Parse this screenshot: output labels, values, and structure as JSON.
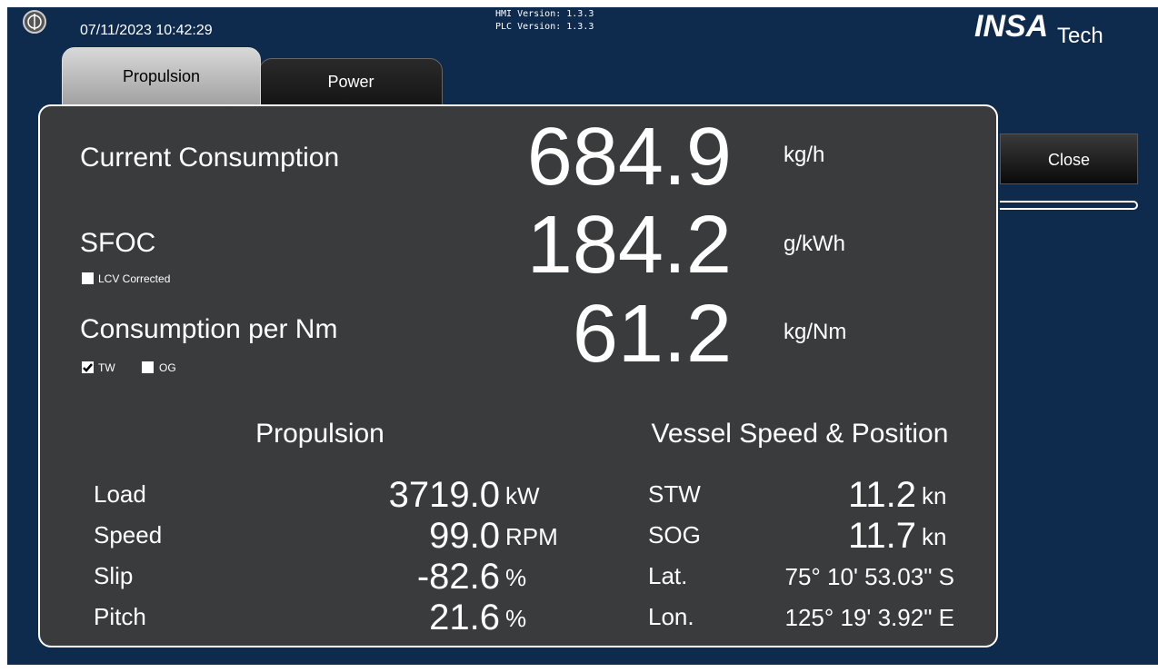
{
  "header": {
    "datetime": "07/11/2023 10:42:29",
    "hmi_version": "HMI Version: 1.3.3",
    "plc_version": "PLC Version: 1.3.3",
    "logo": "INSA",
    "logo_suffix": "Tech"
  },
  "tabs": [
    {
      "label": "Propulsion",
      "active": true
    },
    {
      "label": "Power",
      "active": false
    }
  ],
  "close_button": "Close",
  "metrics": [
    {
      "label": "Current Consumption",
      "value": "684.9",
      "unit": "kg/h"
    },
    {
      "label": "SFOC",
      "value": "184.2",
      "unit": "g/kWh"
    },
    {
      "label": "Consumption per Nm",
      "value": "61.2",
      "unit": "kg/Nm"
    }
  ],
  "options": [
    {
      "label": "LCV Corrected",
      "checked": false
    },
    {
      "label": "TW",
      "checked": true
    },
    {
      "label": "OG",
      "checked": false
    }
  ],
  "propulsion": {
    "title": "Propulsion",
    "rows": [
      {
        "label": "Load",
        "value": "3719.0",
        "unit": "kW"
      },
      {
        "label": "Speed",
        "value": "99.0",
        "unit": "RPM"
      },
      {
        "label": "Slip",
        "value": "-82.6",
        "unit": "%"
      },
      {
        "label": "Pitch",
        "value": "21.6",
        "unit": "%"
      }
    ]
  },
  "vessel": {
    "title": "Vessel Speed & Position",
    "rows": [
      {
        "label": "STW",
        "value": "11.2",
        "unit": "kn"
      },
      {
        "label": "SOG",
        "value": "11.7",
        "unit": "kn"
      },
      {
        "label": "Lat.",
        "value": "75° 10' 53.03\" S"
      },
      {
        "label": "Lon.",
        "value": "125° 19' 3.92\" E"
      }
    ]
  }
}
